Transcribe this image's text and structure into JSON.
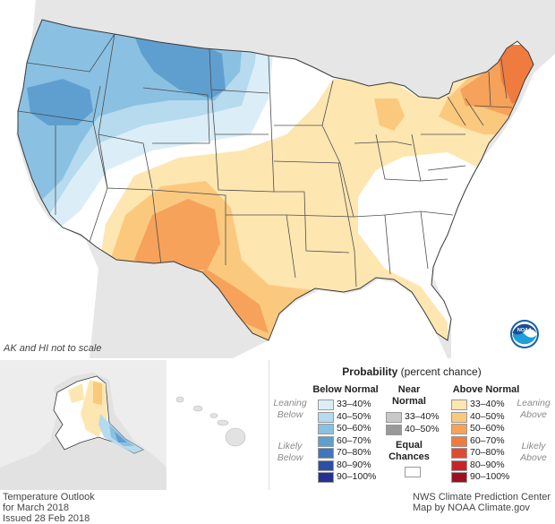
{
  "map": {
    "scale_note": "AK and HI not to scale"
  },
  "legend": {
    "title_bold": "Probability",
    "title_rest": " (percent chance)",
    "below_normal": {
      "heading": "Below Normal",
      "leaning_label": [
        "Leaning",
        "Below"
      ],
      "likely_label": [
        "Likely",
        "Below"
      ],
      "bins": [
        {
          "label": "33–40%",
          "color": "#dbeef8"
        },
        {
          "label": "40–50%",
          "color": "#b6daee"
        },
        {
          "label": "50–60%",
          "color": "#8ac1e2"
        },
        {
          "label": "60–70%",
          "color": "#5f9fd0"
        },
        {
          "label": "70–80%",
          "color": "#4175be"
        },
        {
          "label": "80–90%",
          "color": "#2f4fa6"
        },
        {
          "label": "90–100%",
          "color": "#253092"
        }
      ]
    },
    "near_normal": {
      "heading_line1": "Near",
      "heading_line2": "Normal",
      "bins": [
        {
          "label": "33–40%",
          "color": "#c8c8c8"
        },
        {
          "label": "40–50%",
          "color": "#999999"
        }
      ]
    },
    "equal_chances": {
      "line1": "Equal",
      "line2": "Chances",
      "color": "#ffffff"
    },
    "above_normal": {
      "heading": "Above Normal",
      "leaning_label": [
        "Leaning",
        "Above"
      ],
      "likely_label": [
        "Likely",
        "Above"
      ],
      "bins": [
        {
          "label": "33–40%",
          "color": "#fde6b0"
        },
        {
          "label": "40–50%",
          "color": "#fbc97e"
        },
        {
          "label": "50–60%",
          "color": "#f6a25a"
        },
        {
          "label": "60–70%",
          "color": "#f07b3f"
        },
        {
          "label": "70–80%",
          "color": "#e14a32"
        },
        {
          "label": "80–90%",
          "color": "#c8232a"
        },
        {
          "label": "90–100%",
          "color": "#9c0f20"
        }
      ]
    }
  },
  "footer": {
    "left_line1": "Temperature Outlook",
    "left_line2": "for March 2018",
    "left_line3": "Issued 28 Feb 2018",
    "right_line1": "NWS Climate Prediction Center",
    "right_line2": "Map by NOAA Climate.gov"
  },
  "colors": {
    "land_outside": "#e6e6e6",
    "water": "#ffffff",
    "state_lines": "#4d4d4d",
    "panel_bg": "#ededed"
  }
}
